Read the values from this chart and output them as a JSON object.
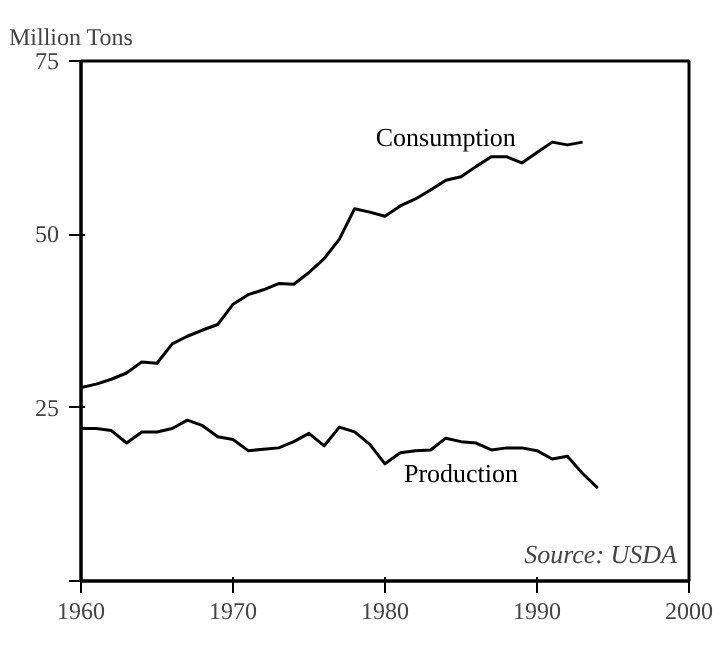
{
  "chart_data": {
    "type": "line",
    "ylabel": "Million Tons",
    "xlim": [
      1960,
      2000
    ],
    "ylim": [
      0,
      75
    ],
    "xticks": [
      1960,
      1970,
      1980,
      1990,
      2000
    ],
    "yticks": [
      {
        "value": 0,
        "label": null
      },
      25,
      50,
      75
    ],
    "grid": false,
    "line_style": "solid",
    "marker": "none",
    "annotations": [
      "Source: USDA"
    ],
    "series": [
      {
        "name": "Consumption",
        "color": "#000000",
        "x": [
          1960,
          1961,
          1962,
          1963,
          1964,
          1965,
          1966,
          1967,
          1968,
          1969,
          1970,
          1971,
          1972,
          1973,
          1974,
          1975,
          1976,
          1977,
          1978,
          1979,
          1980,
          1981,
          1982,
          1983,
          1984,
          1985,
          1986,
          1987,
          1988,
          1989,
          1990,
          1991,
          1992,
          1993
        ],
        "values": [
          27.9,
          28.4,
          29.1,
          30,
          31.6,
          31.4,
          34.2,
          35.3,
          36.2,
          37,
          39.9,
          41.3,
          42,
          42.9,
          42.8,
          44.5,
          46.5,
          49.3,
          53.7,
          53.2,
          52.6,
          54.1,
          55.1,
          56.4,
          57.8,
          58.3,
          59.8,
          61.2,
          61.2,
          60.3,
          61.8,
          63.3,
          62.9,
          63.3
        ]
      },
      {
        "name": "Production",
        "color": "#000000",
        "x": [
          1960,
          1961,
          1962,
          1963,
          1964,
          1965,
          1966,
          1967,
          1968,
          1969,
          1970,
          1971,
          1972,
          1973,
          1974,
          1975,
          1976,
          1977,
          1978,
          1979,
          1980,
          1981,
          1982,
          1983,
          1984,
          1985,
          1986,
          1987,
          1988,
          1989,
          1990,
          1991,
          1992,
          1993,
          1994
        ],
        "values": [
          22,
          22,
          21.7,
          19.9,
          21.5,
          21.5,
          22,
          23.2,
          22.4,
          20.8,
          20.4,
          18.8,
          19,
          19.2,
          20.1,
          21.3,
          19.5,
          22.2,
          21.5,
          19.7,
          16.9,
          18.5,
          18.8,
          18.9,
          20.6,
          20.1,
          19.9,
          18.9,
          19.2,
          19.2,
          18.8,
          17.6,
          18,
          15.5,
          13.4
        ]
      }
    ]
  }
}
